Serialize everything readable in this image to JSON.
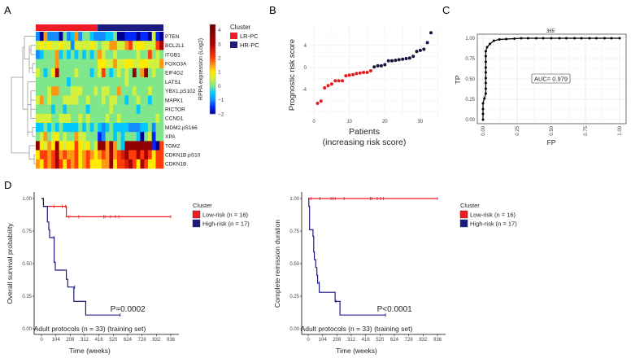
{
  "panel_labels": [
    "A",
    "B",
    "C",
    "D"
  ],
  "colors": {
    "lr": "#ee1c25",
    "hr": "#1c1c80",
    "red_point": "#e41a1c",
    "navy_point": "#14143c"
  },
  "chart_data": [
    {
      "type": "heatmap",
      "panel": "A",
      "colorbar_label": "RPPA expression (Log2)",
      "colorbar_ticks": [
        "4",
        "3",
        "2",
        "1",
        "0",
        "−1",
        "−2"
      ],
      "colorbar_range": [
        -2,
        4.4
      ],
      "legend_title": "Cluster",
      "legend": [
        {
          "label": "LR-PC",
          "color": "#ee1c25"
        },
        {
          "label": "HR-PC",
          "color": "#1c1c80"
        }
      ],
      "column_clusters": {
        "LR-PC": 16,
        "HR-PC": 17
      },
      "rows": [
        "PTEN",
        "BCL2L1",
        "ITGB1",
        "FOXO3A",
        "EIF4G2",
        "LATS1",
        "YBX1.pS102",
        "MAPK1",
        "RICTOR",
        "CCND1",
        "MDM2.pS166",
        "XPA",
        "TGM2",
        "CDKN1B.pS10",
        "CDKN1B"
      ],
      "values": [
        [
          -1,
          -2,
          1.5,
          -1,
          -1,
          -1,
          -2,
          0,
          -1,
          -0.5,
          1.5,
          -1,
          0,
          0,
          -0.5,
          -1,
          -1,
          -1,
          -0.5,
          -0.5,
          0,
          -2,
          -2,
          -1.5,
          -1.5,
          -1.5,
          -2,
          -1.5,
          -1.5,
          -2,
          0.5,
          -1.5,
          -2
        ],
        [
          0.5,
          1,
          0.5,
          1,
          0.5,
          0.5,
          1,
          0.5,
          0.5,
          -1,
          0.5,
          0.5,
          0.5,
          0.5,
          1,
          0.5,
          0,
          0.5,
          0.5,
          1.5,
          1.5,
          0.5,
          0.5,
          1.5,
          2,
          0.5,
          1,
          1,
          0.5,
          0.5,
          0.5,
          2,
          3
        ],
        [
          -1,
          -0.5,
          0,
          0,
          0,
          1.5,
          -0.5,
          0,
          -0.5,
          0,
          -0.5,
          0,
          -0.5,
          0,
          -0.5,
          0,
          1.5,
          0.5,
          0,
          0,
          0.5,
          0,
          0,
          0,
          0,
          0,
          0.5,
          0,
          0,
          2,
          0,
          0.5,
          0
        ],
        [
          0,
          0,
          0,
          0,
          0,
          1.5,
          0,
          0,
          0,
          0,
          0,
          0,
          0,
          0,
          0,
          0,
          1,
          1,
          0.5,
          0.5,
          1.5,
          0.5,
          0.5,
          1,
          1,
          0.5,
          0.5,
          1,
          1,
          0.5,
          0.5,
          0.5,
          1.5
        ],
        [
          0.5,
          0,
          -0.5,
          0,
          1,
          3,
          0,
          0,
          0,
          0,
          0.5,
          0,
          0,
          0,
          -0.5,
          0,
          0.5,
          2,
          0,
          -0.5,
          0,
          0.5,
          0,
          0.5,
          0,
          3.5,
          0,
          1.5,
          3.5,
          0,
          0.5,
          0,
          0
        ],
        [
          0,
          0,
          0,
          0,
          0,
          0,
          0,
          0,
          -0.5,
          0,
          0,
          0,
          0,
          0,
          0,
          0,
          0,
          0,
          0,
          0,
          0,
          0,
          0,
          0.5,
          0,
          0,
          0,
          0,
          0,
          0,
          0,
          0,
          0
        ],
        [
          0,
          0,
          0,
          0.5,
          1.5,
          1.5,
          0,
          0,
          0,
          0.5,
          0.5,
          0.5,
          0,
          0,
          0,
          0.5,
          0,
          0.5,
          0.5,
          0,
          0,
          1.5,
          0,
          0,
          0,
          0.5,
          0,
          0,
          0,
          0.5,
          0,
          0,
          0
        ],
        [
          0.5,
          1.5,
          0,
          0.5,
          0,
          0,
          0,
          0.5,
          0.5,
          0.5,
          0.5,
          0,
          0,
          0.5,
          0,
          0,
          0,
          0.5,
          0,
          0.5,
          0.5,
          0,
          0,
          -0.5,
          0,
          0,
          0.5,
          0,
          0,
          -0.5,
          0,
          0,
          0
        ],
        [
          0,
          0,
          0,
          0,
          -0.5,
          0,
          0,
          -0.5,
          0,
          0,
          0,
          0,
          0,
          -0.5,
          0,
          0,
          0,
          0,
          0,
          0.5,
          0,
          0,
          0,
          0,
          0,
          0,
          -0.5,
          0,
          0,
          0,
          0,
          0,
          0
        ],
        [
          0.5,
          0.5,
          0.5,
          0.5,
          0,
          0,
          0.5,
          0.5,
          0.5,
          0,
          0,
          0.5,
          0,
          0.5,
          0,
          0,
          0,
          0,
          0.5,
          0,
          0,
          0.5,
          0,
          0,
          0,
          0,
          0,
          0,
          0,
          0,
          0,
          0.5,
          0
        ],
        [
          -0.5,
          -0.5,
          0,
          -0.5,
          0,
          -0.5,
          0,
          -0.5,
          -0.5,
          -0.5,
          -0.5,
          0,
          -0.5,
          0,
          -0.5,
          0,
          -0.5,
          -1,
          -0.5,
          0,
          -0.5,
          -0.5,
          -0.5,
          -0.5,
          -1,
          -1,
          -1,
          -0.5,
          -0.5,
          0,
          -1,
          0,
          0
        ],
        [
          0,
          0.5,
          1.5,
          0,
          0.5,
          1,
          0,
          0.5,
          0,
          0,
          1.5,
          0.5,
          0.5,
          0,
          0,
          0,
          -1.5,
          -1,
          0,
          0,
          -0.5,
          0,
          -0.5,
          0,
          0,
          0,
          -0.5,
          -2,
          0,
          0.5,
          -1.5,
          0,
          0
        ],
        [
          3.5,
          1,
          0.5,
          1.5,
          1,
          3.5,
          1,
          0.5,
          1,
          1,
          2,
          1,
          0.5,
          1,
          0,
          0.5,
          3.5,
          3.5,
          1.5,
          3.5,
          1.5,
          0,
          -0.5,
          3.5,
          3.5,
          3.5,
          3.5,
          3.5,
          3.5,
          3.5,
          -1.5,
          -2,
          2
        ],
        [
          1,
          2,
          2,
          1.5,
          2,
          3,
          1.5,
          2,
          1.5,
          1.5,
          2,
          1,
          1.5,
          2,
          1.5,
          1,
          1.5,
          2,
          1.5,
          3,
          1.5,
          2,
          2.5,
          3.5,
          2,
          2,
          3,
          2,
          3,
          2,
          1,
          2,
          2
        ],
        [
          1.5,
          1,
          2,
          1.5,
          2,
          3,
          2,
          1,
          2,
          1.5,
          2,
          1,
          1.5,
          2,
          1,
          1,
          1,
          1.5,
          1.5,
          3.5,
          1,
          2,
          2,
          2.5,
          3,
          2,
          1,
          3,
          2,
          1,
          1,
          2,
          2
        ]
      ]
    },
    {
      "type": "scatter",
      "panel": "B",
      "ylabel": "Prognostic risk score",
      "xlabel_line1": "Patients",
      "xlabel_line2": "(increasing risk score)",
      "xlim": [
        -1.4,
        35.3
      ],
      "ylim": [
        -9.6,
        7.8
      ],
      "xticks": [
        0,
        10,
        20,
        30
      ],
      "yticks": [
        4,
        0,
        -4
      ],
      "grid": true,
      "x": [
        1,
        2,
        3,
        4,
        5,
        6,
        7,
        8,
        9,
        10,
        11,
        12,
        13,
        14,
        15,
        16,
        17,
        18,
        19,
        20,
        21,
        22,
        23,
        24,
        25,
        26,
        27,
        28,
        29,
        30,
        31,
        32,
        33
      ],
      "y": [
        -6.5,
        -6.1,
        -3.7,
        -3.3,
        -3.0,
        -2.4,
        -2.4,
        -2.4,
        -1.5,
        -1.4,
        -1.3,
        -1.1,
        -1.0,
        -0.9,
        -0.9,
        -0.6,
        0.1,
        0.3,
        0.3,
        0.5,
        1.2,
        1.2,
        1.3,
        1.4,
        1.5,
        1.6,
        1.7,
        2.0,
        2.9,
        3.1,
        3.3,
        4.5,
        6.3
      ],
      "group": [
        "LR",
        "LR",
        "LR",
        "LR",
        "LR",
        "LR",
        "LR",
        "LR",
        "LR",
        "LR",
        "LR",
        "LR",
        "LR",
        "LR",
        "LR",
        "LR",
        "HR",
        "HR",
        "HR",
        "HR",
        "HR",
        "HR",
        "HR",
        "HR",
        "HR",
        "HR",
        "HR",
        "HR",
        "HR",
        "HR",
        "HR",
        "HR",
        "HR"
      ]
    },
    {
      "type": "line",
      "panel": "C",
      "title": "365",
      "xlabel": "FP",
      "ylabel": "TP",
      "xlim": [
        -0.05,
        1.03
      ],
      "ylim": [
        -0.05,
        1.05
      ],
      "ticks": [
        "0.00",
        "0.25",
        "0.50",
        "0.75",
        "1.00"
      ],
      "grid": true,
      "annotation": "AUC= 0.979",
      "fp": [
        0,
        0,
        0,
        0,
        0.01,
        0.02,
        0.02,
        0.02,
        0.02,
        0.02,
        0.02,
        0.02,
        0.02,
        0.02,
        0.03,
        0.05,
        0.08,
        0.12,
        0.17,
        0.23,
        0.28,
        0.33,
        0.39,
        0.44,
        0.5,
        0.56,
        0.61,
        0.67,
        0.72,
        0.78,
        0.83,
        0.89,
        0.94,
        1.0
      ],
      "tp": [
        0,
        0.07,
        0.13,
        0.2,
        0.26,
        0.32,
        0.38,
        0.45,
        0.51,
        0.58,
        0.64,
        0.71,
        0.78,
        0.84,
        0.89,
        0.93,
        0.97,
        0.985,
        0.99,
        0.995,
        1,
        1,
        1,
        1,
        1,
        1,
        1,
        1,
        1,
        1,
        1,
        1,
        1,
        1
      ]
    },
    {
      "type": "line",
      "panel": "D-left",
      "ylabel": "Overall survival probability",
      "xlabel": "Time (weeks)",
      "xticks": [
        0,
        104,
        208,
        312,
        416,
        520,
        624,
        728,
        832,
        936
      ],
      "yticks": [
        "0.00",
        "0.25",
        "0.50",
        "0.75",
        "1.00"
      ],
      "p_value": "P=0.0002",
      "caption": "Adult protocols (n = 33) (training set)",
      "legend_title": "Cluster",
      "series": [
        {
          "name": "Low-risk (n = 16)",
          "color": "#ee1c25",
          "steps": [
            [
              0,
              1
            ],
            [
              15,
              0.94
            ],
            [
              180,
              0.86
            ]
          ],
          "end": 936,
          "censored": [
            [
              90,
              0.94
            ],
            [
              150,
              0.94
            ],
            [
              175,
              0.94
            ],
            [
              200,
              0.86
            ],
            [
              270,
              0.86
            ],
            [
              450,
              0.86
            ],
            [
              460,
              0.86
            ],
            [
              500,
              0.86
            ],
            [
              535,
              0.86
            ],
            [
              560,
              0.86
            ],
            [
              936,
              0.86
            ]
          ]
        },
        {
          "name": "High-risk (n = 17)",
          "color": "#1c1c80",
          "steps": [
            [
              0,
              1
            ],
            [
              14,
              0.94
            ],
            [
              43,
              0.82
            ],
            [
              53,
              0.76
            ],
            [
              59,
              0.7
            ],
            [
              92,
              0.51
            ],
            [
              100,
              0.45
            ],
            [
              180,
              0.38
            ],
            [
              190,
              0.32
            ],
            [
              234,
              0.21
            ],
            [
              320,
              0.105
            ]
          ],
          "end": 570,
          "censored": [
            [
              90,
              0.7
            ],
            [
              240,
              0.32
            ],
            [
              570,
              0.105
            ]
          ]
        }
      ]
    },
    {
      "type": "line",
      "panel": "D-right",
      "ylabel": "Complete remission duration",
      "xlabel": "Time (weeks)",
      "xticks": [
        0,
        104,
        208,
        312,
        416,
        520,
        624,
        728,
        832,
        936
      ],
      "yticks": [
        "0.00",
        "0.25",
        "0.50",
        "0.75",
        "1.00"
      ],
      "p_value": "P<0.0001",
      "caption": "Adult protocols (n = 33) (training set)",
      "legend_title": "Cluster",
      "series": [
        {
          "name": "Low-risk (n = 16)",
          "color": "#ee1c25",
          "steps": [
            [
              0,
              1
            ]
          ],
          "end": 936,
          "censored": [
            [
              20,
              1
            ],
            [
              85,
              1
            ],
            [
              165,
              1
            ],
            [
              180,
              1
            ],
            [
              195,
              1
            ],
            [
              260,
              1
            ],
            [
              450,
              1
            ],
            [
              460,
              1
            ],
            [
              500,
              1
            ],
            [
              525,
              1
            ],
            [
              545,
              1
            ],
            [
              936,
              1
            ]
          ]
        },
        {
          "name": "High-risk (n = 17)",
          "color": "#1c1c80",
          "steps": [
            [
              0,
              1
            ],
            [
              5,
              0.94
            ],
            [
              10,
              0.76
            ],
            [
              35,
              0.71
            ],
            [
              40,
              0.59
            ],
            [
              45,
              0.53
            ],
            [
              55,
              0.47
            ],
            [
              63,
              0.41
            ],
            [
              68,
              0.35
            ],
            [
              80,
              0.28
            ],
            [
              195,
              0.21
            ],
            [
              230,
              0.105
            ]
          ],
          "end": 560,
          "censored": [
            [
              80,
              0.35
            ],
            [
              200,
              0.21
            ],
            [
              560,
              0.105
            ]
          ]
        }
      ]
    }
  ]
}
